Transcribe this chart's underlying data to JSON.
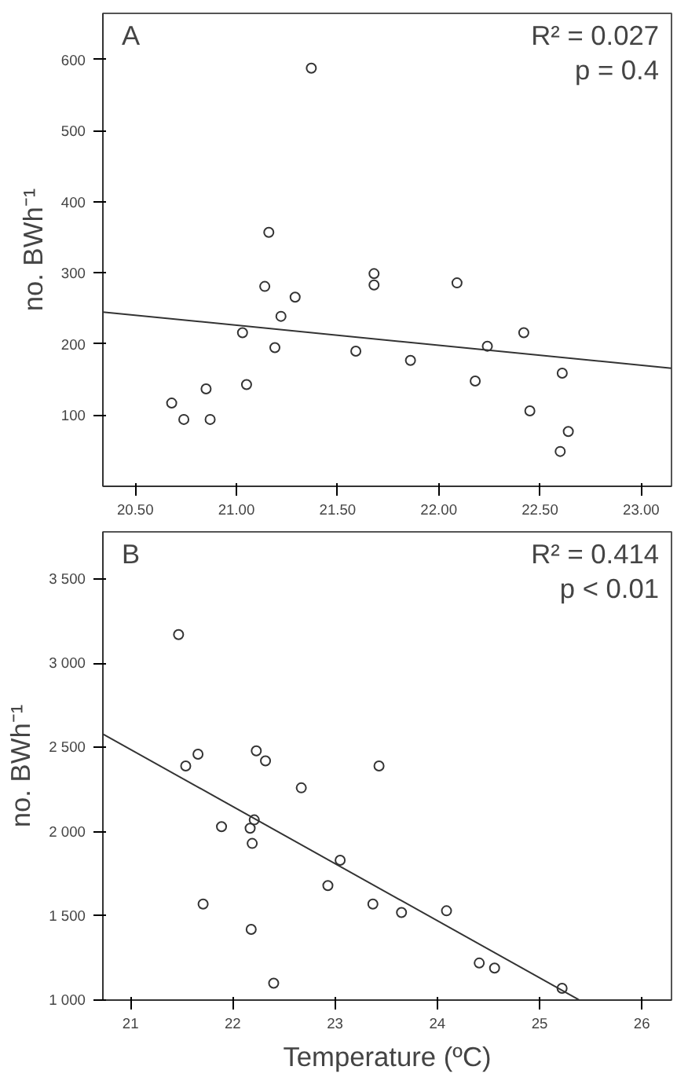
{
  "chart_data": [
    {
      "type": "scatter",
      "ylabel": "no. BWh⁻¹",
      "annotations": [
        "A",
        "R² = 0.027",
        "p = 0.4"
      ],
      "grid": false,
      "xlim": [
        20.34,
        23.15
      ],
      "ylim": [
        0,
        665
      ],
      "xticks": [
        {
          "value": 20.5,
          "label": "20.50"
        },
        {
          "value": 21.0,
          "label": "21.00"
        },
        {
          "value": 21.5,
          "label": "21.50"
        },
        {
          "value": 22.0,
          "label": "22.00"
        },
        {
          "value": 22.5,
          "label": "22.50"
        },
        {
          "value": 23.0,
          "label": "23.00"
        }
      ],
      "yticks": [
        100,
        200,
        300,
        400,
        500,
        600
      ],
      "series": [
        {
          "marker": "circle",
          "color": "#333333",
          "x": [
            20.68,
            20.74,
            20.85,
            20.87,
            21.03,
            21.05,
            21.14,
            21.16,
            21.19,
            21.22,
            21.29,
            21.37,
            21.59,
            21.68,
            21.68,
            21.86,
            22.09,
            22.18,
            22.24,
            22.42,
            22.45,
            22.61,
            22.6,
            22.64
          ],
          "values": [
            117,
            94,
            137,
            94,
            216,
            143,
            281,
            357,
            195,
            239,
            266,
            588,
            190,
            299,
            283,
            177,
            286,
            148,
            197,
            216,
            106,
            159,
            49,
            77
          ]
        },
        {
          "type": "line",
          "color": "#333333",
          "x": [
            20.34,
            23.15
          ],
          "values": [
            245,
            166
          ]
        }
      ]
    },
    {
      "type": "scatter",
      "xlabel": "Temperature (ºC)",
      "ylabel": "no. BWh⁻¹",
      "annotations": [
        "B",
        "R² = 0.414",
        "p < 0.01"
      ],
      "grid": false,
      "xlim": [
        20.73,
        26.29
      ],
      "ylim": [
        1000,
        3780
      ],
      "xticks": [
        21,
        22,
        23,
        24,
        25,
        26
      ],
      "yticks": [
        {
          "value": 1000,
          "label": "1 000"
        },
        {
          "value": 1500,
          "label": "1 500"
        },
        {
          "value": 2000,
          "label": "2 000"
        },
        {
          "value": 2500,
          "label": "2 500"
        },
        {
          "value": 3000,
          "label": "3 000"
        },
        {
          "value": 3500,
          "label": "3 500"
        }
      ],
      "series": [
        {
          "marker": "circle",
          "color": "#333333",
          "x": [
            21.47,
            21.54,
            21.66,
            21.71,
            21.89,
            22.17,
            22.21,
            22.19,
            22.18,
            22.23,
            22.32,
            22.4,
            22.67,
            22.93,
            23.05,
            23.37,
            23.43,
            23.65,
            24.09,
            24.41,
            24.56,
            25.22
          ],
          "values": [
            3170,
            2390,
            2460,
            1570,
            2030,
            2020,
            2070,
            1930,
            1420,
            2480,
            2420,
            1100,
            2260,
            1680,
            1830,
            1570,
            2390,
            1520,
            1530,
            1220,
            1190,
            1070
          ]
        },
        {
          "type": "line",
          "color": "#333333",
          "x": [
            20.73,
            25.39
          ],
          "values": [
            2580,
            1000
          ]
        }
      ]
    }
  ]
}
